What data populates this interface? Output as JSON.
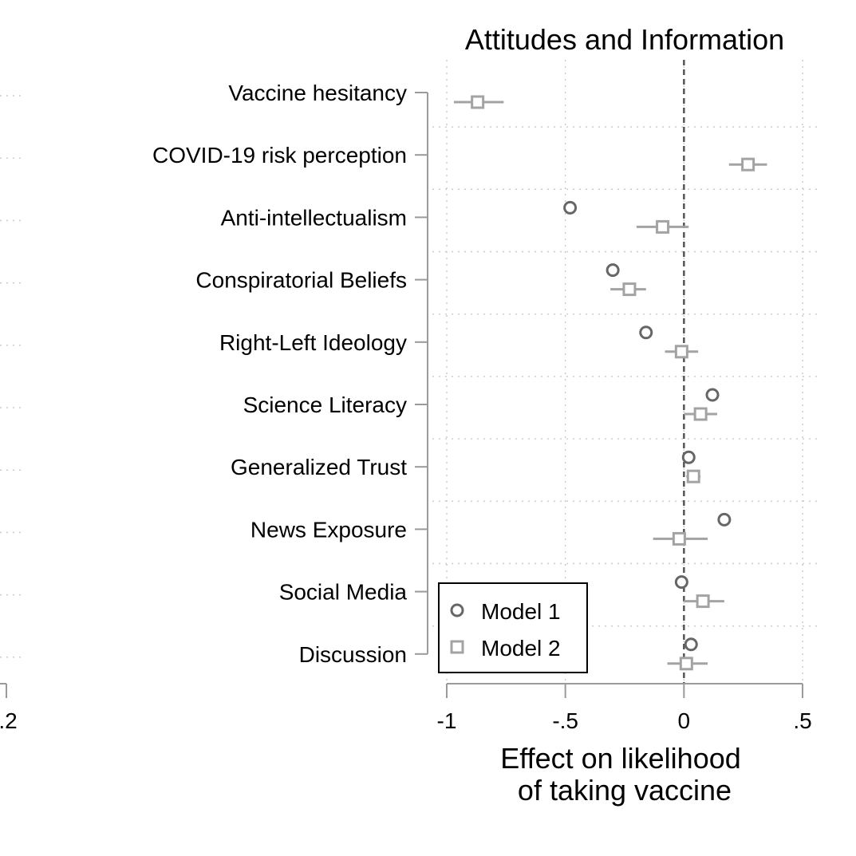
{
  "chart_data": {
    "type": "scatter",
    "title": "Attitudes and Information",
    "xlabel": [
      "Effect on likelihood",
      "of taking vaccine"
    ],
    "xlim": [
      -1,
      0.5
    ],
    "xticks": [
      {
        "value": -1,
        "label": "-1"
      },
      {
        "value": -0.5,
        "label": "-.5"
      },
      {
        "value": 0,
        "label": "0"
      },
      {
        "value": 0.5,
        "label": ".5"
      }
    ],
    "reference_line": 0,
    "categories": [
      "Vaccine hesitancy",
      "COVID-19 risk perception",
      "Anti-intellectualism",
      "Conspiratorial Beliefs",
      "Right-Left Ideology",
      "Science Literacy",
      "Generalized Trust",
      "News Exposure",
      "Social Media",
      "Discussion"
    ],
    "series": [
      {
        "name": "Model 1",
        "marker": "circle",
        "color": "#666666",
        "points": [
          null,
          null,
          {
            "est": -0.48,
            "lo": -0.5,
            "hi": -0.46
          },
          {
            "est": -0.3,
            "lo": -0.31,
            "hi": -0.29
          },
          {
            "est": -0.16,
            "lo": -0.17,
            "hi": -0.15
          },
          {
            "est": 0.12,
            "lo": 0.11,
            "hi": 0.13
          },
          {
            "est": 0.02,
            "lo": 0.01,
            "hi": 0.03
          },
          {
            "est": 0.17,
            "lo": 0.15,
            "hi": 0.19
          },
          {
            "est": -0.01,
            "lo": -0.02,
            "hi": 0.0
          },
          {
            "est": 0.03,
            "lo": 0.02,
            "hi": 0.04
          }
        ]
      },
      {
        "name": "Model 2",
        "marker": "square",
        "color": "#a3a3a3",
        "points": [
          {
            "est": -0.87,
            "lo": -0.97,
            "hi": -0.76
          },
          {
            "est": 0.27,
            "lo": 0.19,
            "hi": 0.35
          },
          {
            "est": -0.09,
            "lo": -0.2,
            "hi": 0.02
          },
          {
            "est": -0.23,
            "lo": -0.31,
            "hi": -0.16
          },
          {
            "est": -0.01,
            "lo": -0.08,
            "hi": 0.06
          },
          {
            "est": 0.07,
            "lo": 0.0,
            "hi": 0.14
          },
          {
            "est": 0.04,
            "lo": 0.01,
            "hi": 0.07
          },
          {
            "est": -0.02,
            "lo": -0.13,
            "hi": 0.1
          },
          {
            "est": 0.08,
            "lo": 0.0,
            "hi": 0.17
          },
          {
            "est": 0.01,
            "lo": -0.07,
            "hi": 0.1
          }
        ]
      }
    ],
    "legend": {
      "position": "bottom-left",
      "entries": [
        "Model 1",
        "Model 2"
      ]
    },
    "grid": true
  },
  "left_panel_partial": {
    "tick_label": ".2"
  }
}
